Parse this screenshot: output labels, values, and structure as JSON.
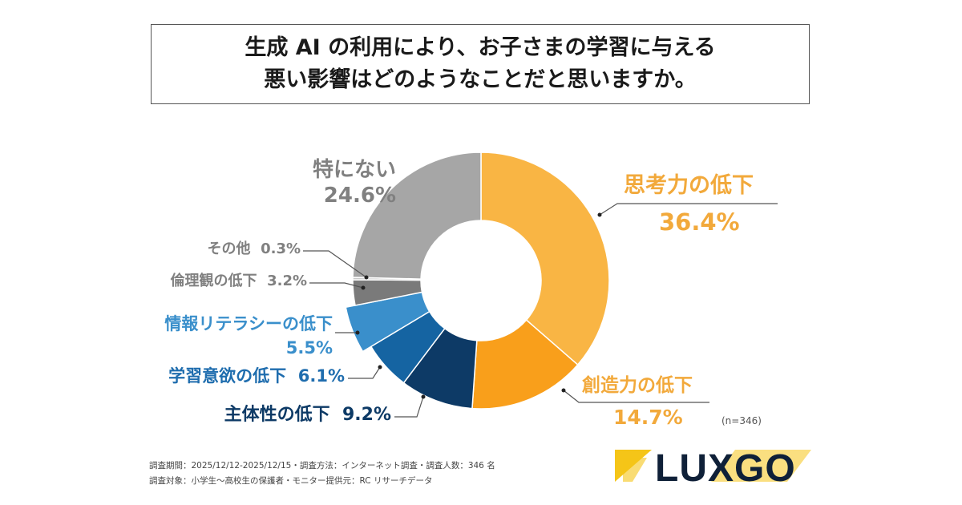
{
  "title": {
    "line1": "生成 AI の利用により、お子さまの学習に与える",
    "line2": "悪い影響はどのようなことだと思いますか。"
  },
  "chart_data": {
    "type": "pie",
    "donut": true,
    "start": "top, clockwise",
    "unit": "%",
    "slices": [
      {
        "label": "思考力の低下",
        "value": 36.4,
        "display": "36.4%",
        "color": "#F9B544"
      },
      {
        "label": "創造力の低下",
        "value": 14.7,
        "display": "14.7%",
        "color": "#F99F1B"
      },
      {
        "label": "主体性の低下",
        "value": 9.2,
        "display": "9.2%",
        "color": "#0D3A66"
      },
      {
        "label": "学習意欲の低下",
        "value": 6.1,
        "display": "6.1%",
        "color": "#1564A2"
      },
      {
        "label": "情報リテラシーの低下",
        "value": 5.5,
        "display": "5.5%",
        "color": "#3A8FCB",
        "exploded": true
      },
      {
        "label": "倫理観の低下",
        "value": 3.2,
        "display": "3.2%",
        "color": "#7A7A7A"
      },
      {
        "label": "その他",
        "value": 0.3,
        "display": "0.3%",
        "color": "#C8C8C8"
      },
      {
        "label": "特にない",
        "value": 24.6,
        "display": "24.6%",
        "color": "#A6A6A6"
      }
    ],
    "sample": "(n=346)"
  },
  "footer": {
    "line1": "調査期間：2025/12/12-2025/12/15・調査方法：インターネット調査・調査人数：346 名",
    "line2": "調査対象：小学生～高校生の保護者・モニター提供元：RC リサーチデータ"
  },
  "logo": {
    "text": "LUXGO",
    "yellow": "#F5C518",
    "navy": "#0F2038"
  }
}
